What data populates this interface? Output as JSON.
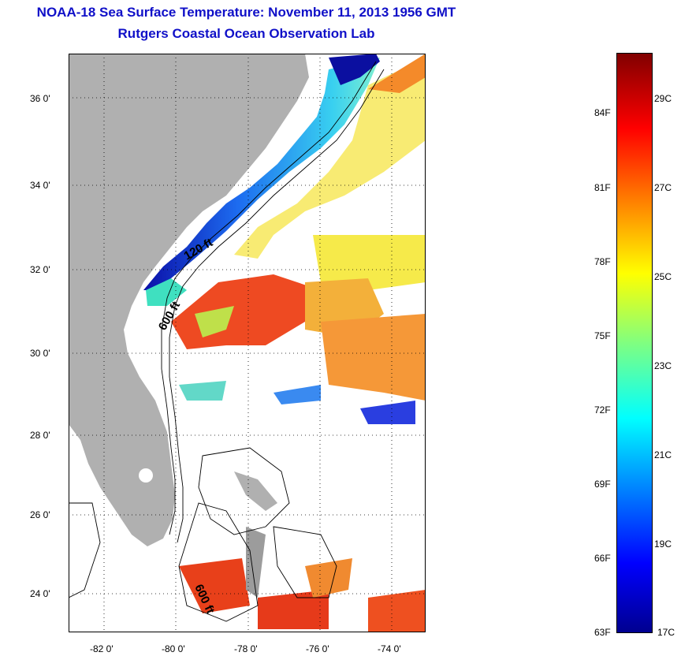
{
  "header": {
    "title": "NOAA-18 Sea Surface Temperature:  November 11, 2013 1956 GMT",
    "subtitle": "Rutgers Coastal Ocean Observation Lab"
  },
  "map": {
    "lat_labels": [
      "36 0'",
      "34 0'",
      "32 0'",
      "30 0'",
      "28 0'",
      "26 0'",
      "24 0'"
    ],
    "lon_labels": [
      "-82 0'",
      "-80 0'",
      "-78 0'",
      "-76 0'",
      "-74 0'"
    ],
    "isobath_labels": [
      "120 ft",
      "600 ft",
      "600 ft"
    ],
    "colors": {
      "land": "#b0b0b0",
      "ocean_missing": "#ffffff",
      "cold": "#0a1fd0",
      "warm": "#e8401a"
    }
  },
  "colorbar": {
    "fahrenheit_labels": [
      "84F",
      "81F",
      "78F",
      "75F",
      "72F",
      "69F",
      "66F",
      "63F"
    ],
    "celsius_labels": [
      "29C",
      "27C",
      "25C",
      "23C",
      "21C",
      "19C",
      "17C"
    ],
    "range_c": [
      17,
      30
    ]
  }
}
